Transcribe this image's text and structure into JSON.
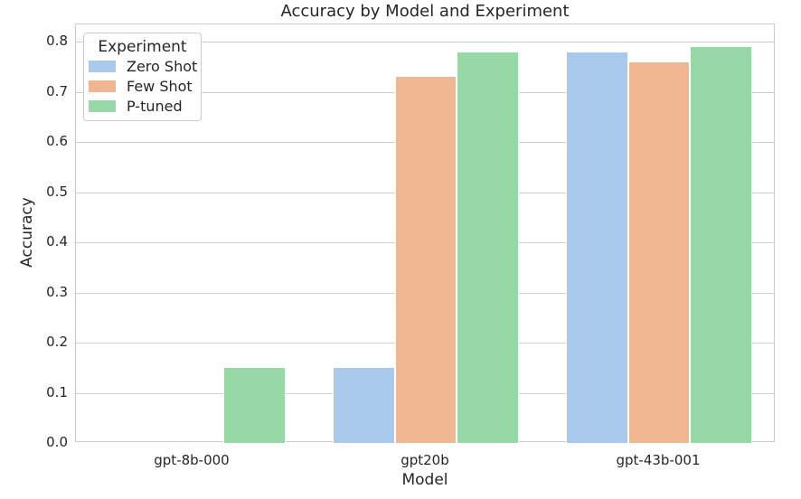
{
  "colors": {
    "text": "#262626",
    "grid": "#cfcfcf",
    "spine": "#cccccc",
    "background": "#ffffff",
    "bar_blue": "#a9c9ec",
    "bar_orange": "#f0b690",
    "bar_green": "#96d8a6"
  },
  "chart_data": {
    "type": "bar",
    "title": "Accuracy by Model and Experiment",
    "xlabel": "Model",
    "ylabel": "Accuracy",
    "categories": [
      "gpt-8b-000",
      "gpt20b",
      "gpt-43b-001"
    ],
    "series": [
      {
        "name": "Zero Shot",
        "color": "#a9c9ec",
        "values": [
          0.0,
          0.15,
          0.78
        ]
      },
      {
        "name": "Few Shot",
        "color": "#f0b690",
        "values": [
          0.0,
          0.73,
          0.76
        ]
      },
      {
        "name": "P-tuned",
        "color": "#96d8a6",
        "values": [
          0.15,
          0.78,
          0.79
        ]
      }
    ],
    "ylim": [
      0,
      0.835
    ],
    "yticks": [
      "0.0",
      "0.1",
      "0.2",
      "0.3",
      "0.4",
      "0.5",
      "0.6",
      "0.7",
      "0.8"
    ],
    "grid": true,
    "legend": {
      "title": "Experiment",
      "position": "upper left"
    }
  }
}
